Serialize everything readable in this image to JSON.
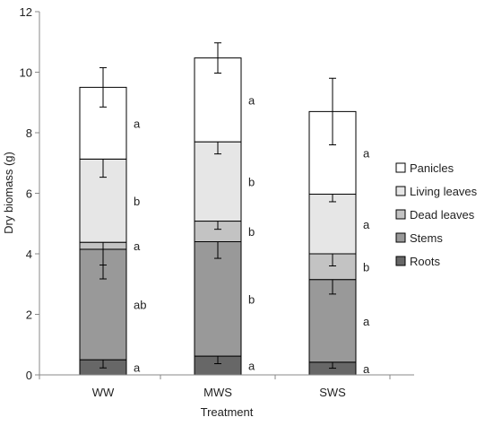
{
  "chart_data": {
    "type": "bar",
    "stacked": true,
    "xlabel": "Treatment",
    "ylabel": "Dry biomass (g)",
    "ylim": [
      0,
      12
    ],
    "yticks": [
      "0",
      "2",
      "4",
      "6",
      "8",
      "10",
      "12"
    ],
    "categories": [
      "WW",
      "MWS",
      "SWS"
    ],
    "grid": false,
    "legend_position": "right",
    "series": [
      {
        "name": "Roots",
        "color": "#676767",
        "values": [
          0.5,
          0.62,
          0.42
        ],
        "errors": [
          0.27,
          0.25,
          0.2
        ],
        "letters": [
          "a",
          "a",
          "a"
        ]
      },
      {
        "name": "Stems",
        "color": "#999999",
        "values": [
          3.65,
          3.78,
          2.73
        ],
        "errors": [
          0.98,
          0.55,
          0.48
        ],
        "letters": [
          "ab",
          "b",
          "a"
        ]
      },
      {
        "name": "Dead leaves",
        "color": "#c3c3c3",
        "values": [
          0.23,
          0.68,
          0.85
        ],
        "errors": [
          0.75,
          0.27,
          0.4
        ],
        "letters": [
          "a",
          "b",
          "b"
        ]
      },
      {
        "name": "Living leaves",
        "color": "#e6e6e6",
        "values": [
          2.75,
          2.62,
          1.97
        ],
        "errors": [
          0.6,
          0.4,
          0.25
        ],
        "letters": [
          "b",
          "b",
          "a"
        ]
      },
      {
        "name": "Panicles",
        "color": "#ffffff",
        "values": [
          2.37,
          2.77,
          2.73
        ],
        "errors": [
          0.65,
          0.5,
          1.1
        ],
        "letters": [
          "a",
          "a",
          "a"
        ]
      }
    ]
  }
}
